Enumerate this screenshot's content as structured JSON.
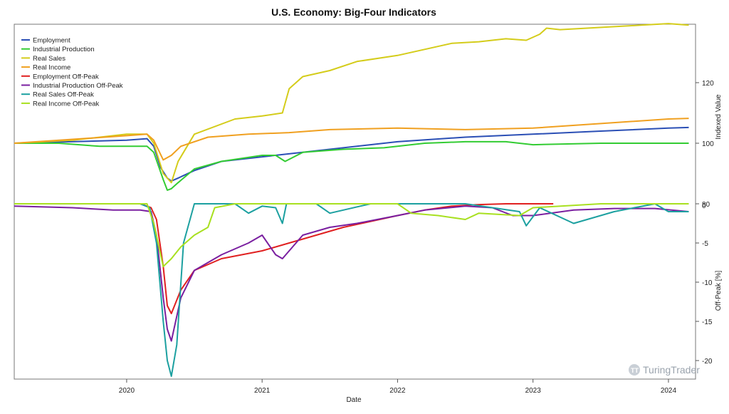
{
  "watermark": "TuringTrader",
  "chart_data": [
    {
      "type": "line",
      "title": "U.S. Economy: Big-Four Indicators",
      "xlabel": "Date",
      "ylabel": "Indexed Value",
      "xlim": [
        2019.17,
        2024.2
      ],
      "ylim": [
        80,
        140
      ],
      "y_axis_side": "right",
      "y_ticks": [
        80,
        100,
        120
      ],
      "x_ticks": [
        "2020",
        "2021",
        "2022",
        "2023",
        "2024"
      ],
      "legend": "top-left",
      "grid": false,
      "series": [
        {
          "name": "Employment",
          "color": "#2b4fb5",
          "x": [
            2019.17,
            2020.0,
            2020.15,
            2020.2,
            2020.25,
            2020.3,
            2020.33,
            2020.38,
            2020.5,
            2020.7,
            2021.0,
            2021.5,
            2022.0,
            2022.5,
            2023.0,
            2023.5,
            2024.0,
            2024.15
          ],
          "values": [
            100,
            101,
            101.5,
            99,
            92,
            88.5,
            87.5,
            88.5,
            91,
            94,
            95.5,
            98,
            100.5,
            102,
            103,
            104,
            105,
            105.2
          ]
        },
        {
          "name": "Industrial Production",
          "color": "#33cc33",
          "x": [
            2019.17,
            2019.5,
            2019.8,
            2020.0,
            2020.15,
            2020.2,
            2020.27,
            2020.3,
            2020.33,
            2020.38,
            2020.5,
            2020.7,
            2021.0,
            2021.1,
            2021.17,
            2021.3,
            2021.6,
            2021.9,
            2022.2,
            2022.5,
            2022.8,
            2023.0,
            2023.5,
            2024.0,
            2024.15
          ],
          "values": [
            100,
            100,
            99,
            99,
            99,
            97,
            88,
            84.5,
            85,
            87,
            91.5,
            94,
            96,
            96,
            94,
            97,
            98,
            98.5,
            100,
            100.5,
            100.5,
            99.5,
            100,
            100,
            100
          ]
        },
        {
          "name": "Real Sales",
          "color": "#d4cc1a",
          "x": [
            2019.17,
            2019.6,
            2020.0,
            2020.15,
            2020.2,
            2020.27,
            2020.33,
            2020.38,
            2020.5,
            2020.8,
            2021.0,
            2021.15,
            2021.2,
            2021.3,
            2021.5,
            2021.7,
            2022.0,
            2022.2,
            2022.4,
            2022.6,
            2022.8,
            2022.95,
            2023.05,
            2023.1,
            2023.2,
            2023.4,
            2023.6,
            2023.8,
            2024.0,
            2024.15
          ],
          "values": [
            100,
            101,
            103,
            103,
            100,
            90,
            87,
            94,
            103,
            108,
            109,
            110,
            118,
            122,
            124,
            127,
            129,
            131,
            133,
            133.5,
            134.5,
            134,
            136,
            138,
            137.5,
            138,
            138.5,
            139,
            139.5,
            139
          ]
        },
        {
          "name": "Real Income",
          "color": "#f0a020",
          "x": [
            2019.17,
            2020.0,
            2020.15,
            2020.2,
            2020.27,
            2020.33,
            2020.4,
            2020.6,
            2020.9,
            2021.2,
            2021.5,
            2022.0,
            2022.5,
            2023.0,
            2023.5,
            2024.0,
            2024.15
          ],
          "values": [
            100,
            102.5,
            103,
            101,
            94.5,
            96,
            99,
            102,
            103,
            103.5,
            104.5,
            105,
            104.5,
            105,
            106.5,
            108,
            108.2
          ]
        },
        {
          "name": "Employment Off-Peak",
          "color": "#e02020",
          "x": [
            2019.17,
            2020.1,
            2020.18,
            2020.22,
            2020.27,
            2020.3,
            2020.33,
            2020.4,
            2020.5,
            2020.7,
            2021.0,
            2021.3,
            2021.6,
            2022.0,
            2022.2,
            2022.4,
            2022.6,
            2022.8,
            2023.0,
            2023.15
          ],
          "values": [
            0,
            0,
            -0.5,
            -2,
            -8,
            -13,
            -14,
            -11,
            -8.5,
            -7,
            -6,
            -4.5,
            -3,
            -1.5,
            -0.8,
            -0.3,
            -0.1,
            0,
            0,
            0
          ]
        },
        {
          "name": "Industrial Production Off-Peak",
          "color": "#7a1fa0",
          "x": [
            2019.17,
            2019.6,
            2019.9,
            2020.1,
            2020.18,
            2020.22,
            2020.27,
            2020.3,
            2020.33,
            2020.4,
            2020.5,
            2020.7,
            2020.9,
            2021.0,
            2021.1,
            2021.15,
            2021.3,
            2021.5,
            2021.7,
            2022.0,
            2022.2,
            2022.5,
            2022.7,
            2022.85,
            2023.0,
            2023.3,
            2023.6,
            2023.9,
            2024.15
          ],
          "values": [
            -0.3,
            -0.5,
            -0.8,
            -0.8,
            -1,
            -4,
            -12,
            -16,
            -17.5,
            -12,
            -8.5,
            -6.5,
            -5,
            -4,
            -6.5,
            -7,
            -4,
            -3,
            -2.5,
            -1.5,
            -0.8,
            -0.3,
            -0.5,
            -1.5,
            -1.5,
            -0.8,
            -0.6,
            -0.6,
            -1
          ]
        },
        {
          "name": "Real Sales Off-Peak",
          "color": "#1ca0a0",
          "x": [
            2019.17,
            2019.6,
            2020.1,
            2020.17,
            2020.22,
            2020.27,
            2020.3,
            2020.33,
            2020.37,
            2020.42,
            2020.5,
            2020.8,
            2020.9,
            2021.0,
            2021.1,
            2021.15,
            2021.18,
            2021.4,
            2021.5,
            2021.8,
            2022.0,
            2022.5,
            2022.9,
            2022.95,
            2023.05,
            2023.3,
            2023.6,
            2023.9,
            2024.0,
            2024.15
          ],
          "values": [
            0,
            0,
            0,
            -0.5,
            -5,
            -15,
            -20,
            -22,
            -18,
            -5,
            0,
            0,
            -1.2,
            -0.3,
            -0.5,
            -2.5,
            0,
            0,
            -1.2,
            0,
            0,
            0,
            -1,
            -2.8,
            -0.5,
            -2.5,
            -1,
            0,
            -1,
            -1
          ]
        },
        {
          "name": "Real Income Off-Peak",
          "color": "#a8e020",
          "x": [
            2019.17,
            2020.15,
            2020.2,
            2020.27,
            2020.33,
            2020.4,
            2020.5,
            2020.6,
            2020.65,
            2020.8,
            2021.0,
            2021.5,
            2022.0,
            2022.1,
            2022.3,
            2022.5,
            2022.6,
            2022.9,
            2023.0,
            2023.5,
            2024.15
          ],
          "values": [
            0,
            0,
            -2.5,
            -8,
            -7,
            -5.5,
            -4,
            -3,
            -0.5,
            0,
            0,
            0,
            0,
            -1.2,
            -1.5,
            -2,
            -1.2,
            -1.5,
            -0.5,
            0,
            0
          ]
        }
      ]
    },
    {
      "type": "line",
      "title": "",
      "xlabel": "",
      "ylabel": "Off-Peak [%]",
      "xlim": [
        2019.17,
        2024.2
      ],
      "ylim": [
        -22,
        0
      ],
      "y_axis_side": "right",
      "y_ticks": [
        0,
        -5,
        -10,
        -15,
        -20
      ],
      "series_ref": [
        "Employment Off-Peak",
        "Industrial Production Off-Peak",
        "Real Sales Off-Peak",
        "Real Income Off-Peak"
      ]
    }
  ]
}
